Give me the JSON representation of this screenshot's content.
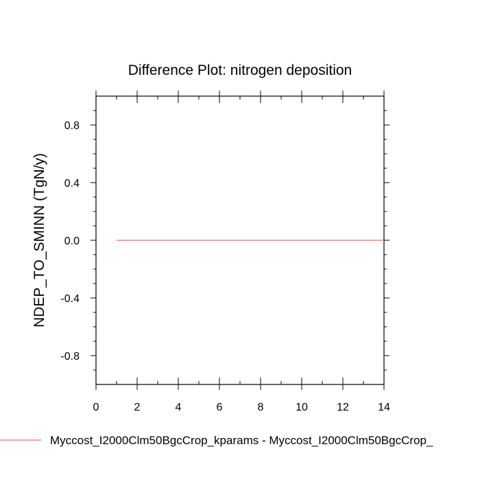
{
  "chart_data": {
    "type": "line",
    "title": "Difference Plot: nitrogen deposition",
    "xlabel": "",
    "ylabel": "NDEP_TO_SMINN  (TgN/y)",
    "xlim": [
      0,
      14
    ],
    "ylim": [
      -1.0,
      1.0
    ],
    "x_ticks": [
      0,
      2,
      4,
      6,
      8,
      10,
      12,
      14
    ],
    "x_tick_labels": [
      "0",
      "2",
      "4",
      "6",
      "8",
      "10",
      "12",
      "14"
    ],
    "y_ticks": [
      0.8,
      0.4,
      0.0,
      -0.4,
      -0.8
    ],
    "y_tick_labels": [
      "0.8",
      "0.4",
      "0.0",
      "-0.4",
      "-0.8"
    ],
    "grid": false,
    "legend_position": "bottom",
    "series": [
      {
        "name": "Myccost_I2000Clm50BgcCrop_kparams - Myccost_I2000Clm50BgcCrop_",
        "color": "#e07070",
        "x": [
          1,
          2,
          3,
          4,
          5,
          6,
          7,
          8,
          9,
          10,
          11,
          12,
          13,
          14
        ],
        "y": [
          0,
          0,
          0,
          0,
          0,
          0,
          0,
          0,
          0,
          0,
          0,
          0,
          0,
          0
        ]
      }
    ]
  }
}
